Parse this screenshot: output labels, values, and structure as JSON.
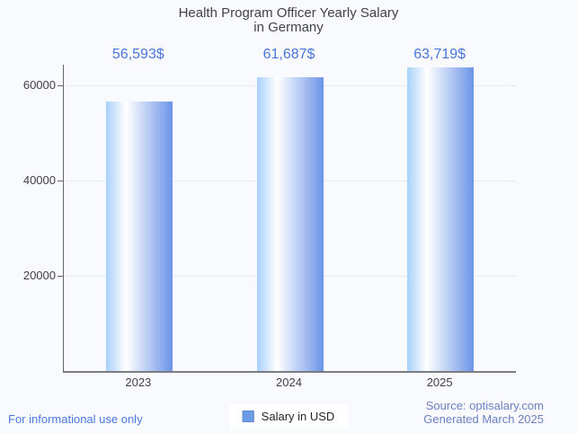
{
  "title": {
    "line1": "Health Program Officer Yearly Salary",
    "line2": "in Germany"
  },
  "chart_data": {
    "type": "bar",
    "title": "Health Program Officer Yearly Salary in Germany",
    "categories": [
      "2023",
      "2024",
      "2025"
    ],
    "series": [
      {
        "name": "Salary in USD",
        "values": [
          56593,
          61687,
          63719
        ]
      }
    ],
    "value_labels": [
      "56,593$",
      "61,687$",
      "63,719$"
    ],
    "xlabel": "",
    "ylabel": "",
    "y_ticks": [
      20000,
      40000,
      60000
    ],
    "y_tick_labels": [
      "20000",
      "40000",
      "60000"
    ],
    "ylim": [
      0,
      64340
    ],
    "grid": true,
    "legend_position": "bottom"
  },
  "legend": {
    "label": "Salary in USD"
  },
  "footer": {
    "disclaimer": "For informational use only",
    "source": "Source: optisalary.com",
    "generated": "Generated March 2025"
  },
  "colors": {
    "background": "#f8fafd",
    "title_text": "#3f4349",
    "tick_text": "#3e4247",
    "value_label_text": "#4a75dc",
    "bar_gradient_left": "#a8d1fa",
    "bar_gradient_mid": "#ffffff",
    "bar_gradient_right": "#6b94e8",
    "legend_swatch": "#6c9ce6",
    "gridline": "#e7e9ed",
    "axis": "#63676c",
    "disclaimer_text": "#4c78e4",
    "source_text": "#6b80c1",
    "legend_background": "#ffffff"
  }
}
